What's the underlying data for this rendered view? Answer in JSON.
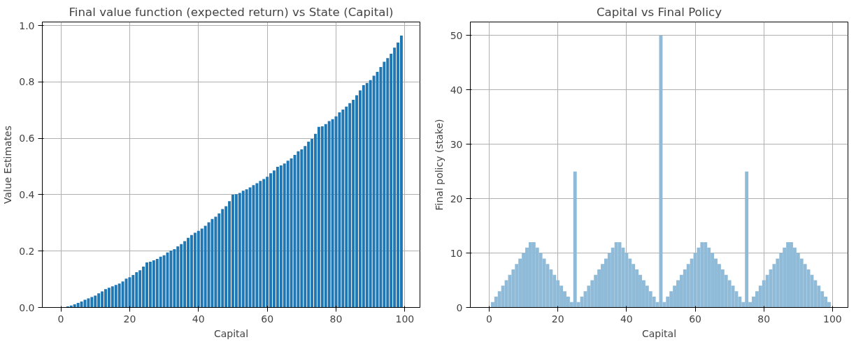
{
  "chart_data": [
    {
      "type": "bar",
      "title": "Final value function (expected return) vs State (Capital)",
      "xlabel": "Capital",
      "ylabel": "Value Estimates",
      "color": "#1f77b4",
      "grid": true,
      "x": [
        2,
        3,
        4,
        5,
        6,
        7,
        8,
        9,
        10,
        11,
        12,
        13,
        14,
        15,
        16,
        17,
        18,
        19,
        20,
        21,
        22,
        23,
        24,
        25,
        26,
        27,
        28,
        29,
        30,
        31,
        32,
        33,
        34,
        35,
        36,
        37,
        38,
        39,
        40,
        41,
        42,
        43,
        44,
        45,
        46,
        47,
        48,
        49,
        50,
        51,
        52,
        53,
        54,
        55,
        56,
        57,
        58,
        59,
        60,
        61,
        62,
        63,
        64,
        65,
        66,
        67,
        68,
        69,
        70,
        71,
        72,
        73,
        74,
        75,
        76,
        77,
        78,
        79,
        80,
        81,
        82,
        83,
        84,
        85,
        86,
        87,
        88,
        89,
        90,
        91,
        92,
        93,
        94,
        95,
        96,
        97,
        98,
        99
      ],
      "values": [
        0.004,
        0.007,
        0.011,
        0.016,
        0.021,
        0.027,
        0.032,
        0.037,
        0.042,
        0.05,
        0.057,
        0.065,
        0.07,
        0.075,
        0.08,
        0.085,
        0.092,
        0.102,
        0.107,
        0.115,
        0.125,
        0.132,
        0.145,
        0.16,
        0.162,
        0.167,
        0.172,
        0.18,
        0.185,
        0.195,
        0.202,
        0.207,
        0.217,
        0.225,
        0.235,
        0.247,
        0.257,
        0.265,
        0.272,
        0.28,
        0.29,
        0.302,
        0.314,
        0.322,
        0.334,
        0.349,
        0.359,
        0.377,
        0.4,
        0.402,
        0.406,
        0.414,
        0.419,
        0.426,
        0.434,
        0.441,
        0.449,
        0.456,
        0.464,
        0.476,
        0.486,
        0.499,
        0.504,
        0.511,
        0.521,
        0.529,
        0.541,
        0.554,
        0.561,
        0.573,
        0.588,
        0.598,
        0.616,
        0.641,
        0.643,
        0.651,
        0.661,
        0.668,
        0.678,
        0.692,
        0.702,
        0.713,
        0.725,
        0.737,
        0.753,
        0.77,
        0.789,
        0.796,
        0.807,
        0.822,
        0.836,
        0.853,
        0.872,
        0.885,
        0.9,
        0.922,
        0.94,
        0.965
      ],
      "xlim": [
        -5.4,
        104.4
      ],
      "ylim": [
        0,
        1.013
      ],
      "xticks": [
        0,
        20,
        40,
        60,
        80,
        100
      ],
      "yticks": [
        {
          "value": 0,
          "label": "0.0"
        },
        0.2,
        0.4,
        0.6,
        0.8,
        {
          "value": 1,
          "label": "1.0"
        }
      ]
    },
    {
      "type": "bar",
      "title": "Capital vs Final Policy",
      "xlabel": "Capital",
      "ylabel": "Final policy (stake)",
      "color": "#8fbbd9",
      "grid": true,
      "x": [
        1,
        2,
        3,
        4,
        5,
        6,
        7,
        8,
        9,
        10,
        11,
        12,
        13,
        14,
        15,
        16,
        17,
        18,
        19,
        20,
        21,
        22,
        23,
        24,
        25,
        26,
        27,
        28,
        29,
        30,
        31,
        32,
        33,
        34,
        35,
        36,
        37,
        38,
        39,
        40,
        41,
        42,
        43,
        44,
        45,
        46,
        47,
        48,
        49,
        50,
        51,
        52,
        53,
        54,
        55,
        56,
        57,
        58,
        59,
        60,
        61,
        62,
        63,
        64,
        65,
        66,
        67,
        68,
        69,
        70,
        71,
        72,
        73,
        74,
        75,
        76,
        77,
        78,
        79,
        80,
        81,
        82,
        83,
        84,
        85,
        86,
        87,
        88,
        89,
        90,
        91,
        92,
        93,
        94,
        95,
        96,
        97,
        98,
        99
      ],
      "values": [
        1,
        2,
        3,
        4,
        5,
        6,
        7,
        8,
        9,
        10,
        11,
        12,
        12,
        11,
        10,
        9,
        8,
        7,
        6,
        5,
        4,
        3,
        2,
        1,
        25,
        1,
        2,
        3,
        4,
        5,
        6,
        7,
        8,
        9,
        10,
        11,
        12,
        12,
        11,
        10,
        9,
        8,
        7,
        6,
        5,
        4,
        3,
        2,
        1,
        50,
        1,
        2,
        3,
        4,
        5,
        6,
        7,
        8,
        9,
        10,
        11,
        12,
        12,
        11,
        10,
        9,
        8,
        7,
        6,
        5,
        4,
        3,
        2,
        1,
        25,
        1,
        2,
        3,
        4,
        5,
        6,
        7,
        8,
        9,
        10,
        11,
        12,
        12,
        11,
        10,
        9,
        8,
        7,
        6,
        5,
        4,
        3,
        2,
        1
      ],
      "xlim": [
        -5.5,
        104.5
      ],
      "ylim": [
        0,
        52.5
      ],
      "xticks": [
        0,
        20,
        40,
        60,
        80,
        100
      ],
      "yticks": [
        0,
        10,
        20,
        30,
        40,
        50
      ]
    }
  ]
}
